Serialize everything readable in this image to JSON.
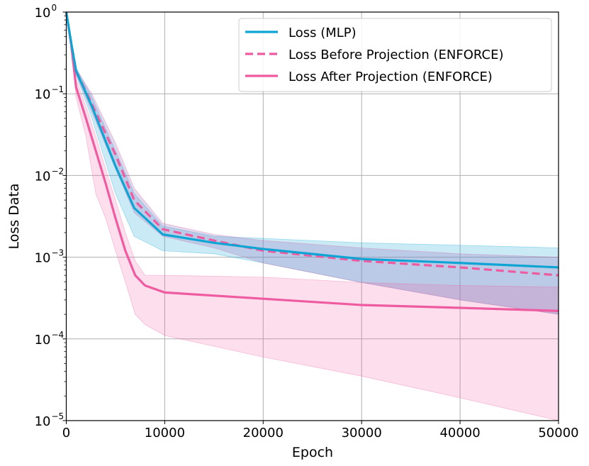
{
  "chart_data": {
    "type": "line",
    "xlabel": "Epoch",
    "ylabel": "Loss Data",
    "xlim": [
      0,
      50000
    ],
    "ylim": [
      1e-05,
      1
    ],
    "yscale": "log",
    "grid": true,
    "legend_placement": "top-right",
    "x_ticks": [
      "0",
      "10000",
      "20000",
      "30000",
      "40000",
      "50000"
    ],
    "x_tick_values": [
      0,
      10000,
      20000,
      30000,
      40000,
      50000
    ],
    "y_ticks": [
      {
        "base": "10",
        "exp": "0"
      },
      {
        "base": "10",
        "exp": "−1"
      },
      {
        "base": "10",
        "exp": "−2"
      },
      {
        "base": "10",
        "exp": "−3"
      },
      {
        "base": "10",
        "exp": "−4"
      },
      {
        "base": "10",
        "exp": "−5"
      }
    ],
    "y_tick_values": [
      1,
      0.1,
      0.01,
      0.001,
      0.0001,
      1e-05
    ],
    "series": [
      {
        "name": "Loss (MLP)",
        "color": "#0ea5d4",
        "style": "solid",
        "x": [
          0,
          500,
          1000,
          2600,
          5000,
          6900,
          9800,
          15000,
          20000,
          30000,
          40000,
          50000
        ],
        "y": [
          1,
          0.42,
          0.19,
          0.07,
          0.013,
          0.004,
          0.0019,
          0.0015,
          0.00126,
          0.00095,
          0.00085,
          0.00075
        ],
        "upper": [
          1,
          0.45,
          0.21,
          0.09,
          0.02,
          0.006,
          0.0024,
          0.0018,
          0.0017,
          0.0015,
          0.0014,
          0.0013
        ],
        "lower": [
          1,
          0.4,
          0.17,
          0.05,
          0.006,
          0.0018,
          0.0012,
          0.0011,
          0.00085,
          0.00049,
          0.0003,
          0.0002
        ]
      },
      {
        "name": "Loss Before Projection (ENFORCE)",
        "color": "#ef5ba1",
        "style": "dashed",
        "x": [
          0,
          500,
          1000,
          2600,
          5000,
          6900,
          9800,
          15000,
          20000,
          30000,
          40000,
          50000
        ],
        "y": [
          1,
          0.42,
          0.19,
          0.075,
          0.018,
          0.005,
          0.0022,
          0.0016,
          0.0012,
          0.0009,
          0.00075,
          0.0006
        ],
        "upper": [
          1,
          0.45,
          0.2,
          0.1,
          0.025,
          0.007,
          0.0026,
          0.0019,
          0.0016,
          0.0013,
          0.0011,
          0.001
        ],
        "lower": [
          1,
          0.4,
          0.17,
          0.06,
          0.012,
          0.0035,
          0.0018,
          0.0013,
          0.00085,
          0.00049,
          0.0003,
          0.0002
        ]
      },
      {
        "name": "Loss After Projection (ENFORCE)",
        "color": "#ef5ba1",
        "style": "solid",
        "x": [
          0,
          500,
          1000,
          2000,
          3000,
          4000,
          5000,
          6000,
          7000,
          8000,
          10000,
          20000,
          30000,
          40000,
          50000
        ],
        "y": [
          1,
          0.4,
          0.12,
          0.05,
          0.02,
          0.008,
          0.003,
          0.0012,
          0.0006,
          0.00045,
          0.00037,
          0.00031,
          0.00026,
          0.00024,
          0.00022
        ],
        "upper": [
          1,
          0.45,
          0.15,
          0.07,
          0.03,
          0.012,
          0.005,
          0.002,
          0.0009,
          0.0006,
          0.0006,
          0.00057,
          0.00049,
          0.00045,
          0.00043
        ],
        "lower": [
          1,
          0.35,
          0.09,
          0.03,
          0.006,
          0.003,
          0.0012,
          0.0005,
          0.0002,
          0.00015,
          0.00011,
          6e-05,
          3.5e-05,
          1.9e-05,
          1e-05
        ]
      }
    ]
  }
}
